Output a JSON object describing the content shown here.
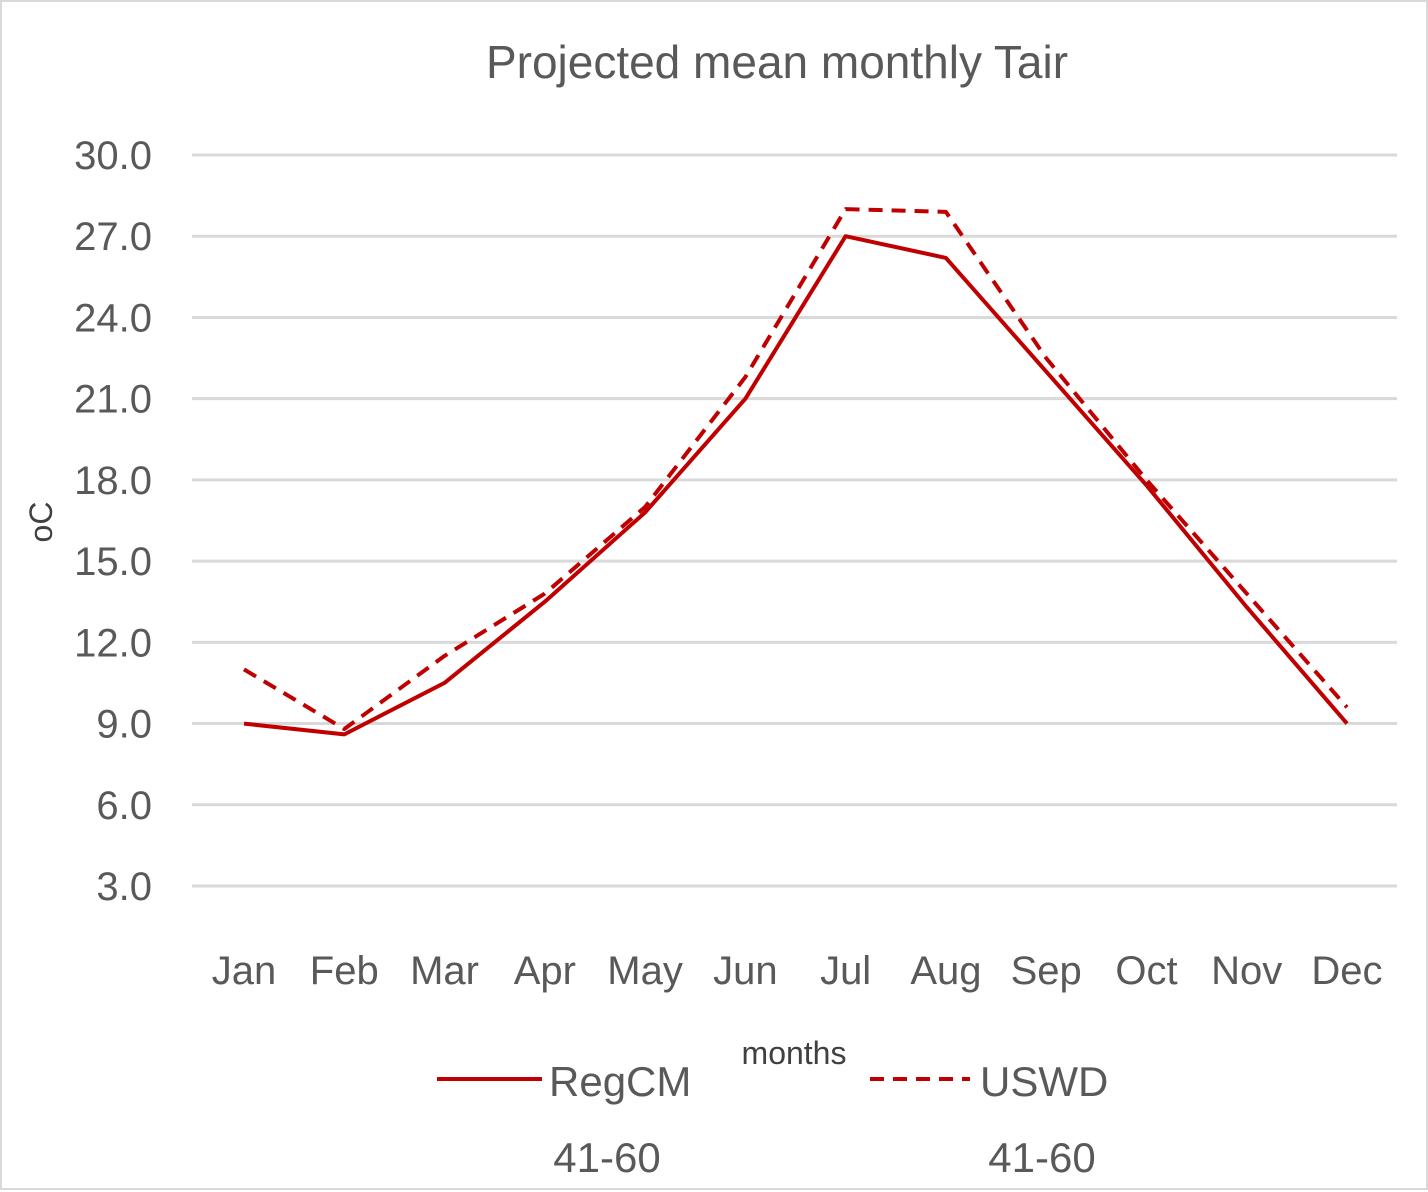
{
  "chart_data": {
    "type": "line",
    "title": "Projected mean monthly Tair",
    "xlabel": "months",
    "ylabel": "oC",
    "categories": [
      "Jan",
      "Feb",
      "Mar",
      "Apr",
      "May",
      "Jun",
      "Jul",
      "Aug",
      "Sep",
      "Oct",
      "Nov",
      "Dec"
    ],
    "ylim": [
      3.0,
      30.0
    ],
    "yticks": [
      "30.0",
      "27.0",
      "24.0",
      "21.0",
      "18.0",
      "15.0",
      "12.0",
      "9.0",
      "6.0",
      "3.0"
    ],
    "grid": true,
    "legend_position": "bottom",
    "series": [
      {
        "name": "RegCM 41-60",
        "name_line1": "RegCM",
        "name_line2": "41-60",
        "style": "solid",
        "color": "#c00000",
        "values": [
          9.0,
          8.6,
          10.5,
          13.5,
          16.8,
          21.0,
          27.0,
          26.2,
          22.0,
          17.8,
          13.3,
          9.0
        ]
      },
      {
        "name": "USWD 41-60",
        "name_line1": "USWD",
        "name_line2": "41-60",
        "style": "dashed",
        "color": "#c00000",
        "values": [
          11.0,
          8.8,
          11.5,
          13.8,
          17.0,
          21.8,
          28.0,
          27.9,
          22.5,
          18.0,
          13.8,
          9.6
        ]
      }
    ]
  }
}
